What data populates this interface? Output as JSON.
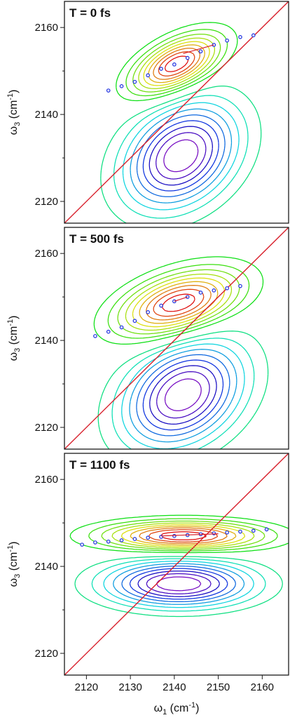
{
  "chart_data": [
    {
      "type": "contour",
      "label": "T = 0 fs",
      "xlabel": "",
      "ylabel": "ω3 (cm-1)",
      "ylabel_main": "ω",
      "ylabel_sub": "3",
      "ylabel_unit": " (cm",
      "ylabel_sup": "-1",
      "ylabel_close": ")",
      "xlim": [
        2115,
        2166
      ],
      "ylim": [
        2115,
        2166
      ],
      "yticks": [
        2120,
        2140,
        2160
      ],
      "positive_peak": {
        "x": 2140.5,
        "y": 2151.5,
        "sx": 6.5,
        "sy": 4.5,
        "corr": 0.55
      },
      "negative_peak": {
        "x": 2141.5,
        "y": 2130.5,
        "sx": 8.5,
        "sy": 8.0,
        "corr": 0.3
      },
      "diagonal": [
        [
          2115,
          2115
        ],
        [
          2166,
          2166
        ]
      ],
      "center_line": {
        "x": [
          2142,
          2149
        ],
        "y": [
          2154,
          2156
        ]
      },
      "points": [
        {
          "x": 2125,
          "y": 2145.5
        },
        {
          "x": 2128,
          "y": 2146.5
        },
        {
          "x": 2131,
          "y": 2147.5
        },
        {
          "x": 2134,
          "y": 2149
        },
        {
          "x": 2137,
          "y": 2150.5
        },
        {
          "x": 2140,
          "y": 2151.5
        },
        {
          "x": 2143,
          "y": 2153
        },
        {
          "x": 2146,
          "y": 2154.5
        },
        {
          "x": 2149,
          "y": 2156
        },
        {
          "x": 2152,
          "y": 2157
        },
        {
          "x": 2155,
          "y": 2157.8
        },
        {
          "x": 2158,
          "y": 2158.2
        }
      ]
    },
    {
      "type": "contour",
      "label": "T = 500 fs",
      "xlabel": "",
      "ylabel": "ω3 (cm-1)",
      "ylabel_main": "ω",
      "ylabel_sub": "3",
      "ylabel_unit": " (cm",
      "ylabel_sup": "-1",
      "ylabel_close": ")",
      "xlim": [
        2115,
        2166
      ],
      "ylim": [
        2115,
        2166
      ],
      "yticks": [
        2120,
        2140,
        2160
      ],
      "positive_peak": {
        "x": 2141,
        "y": 2148.5,
        "sx": 9.0,
        "sy": 5.0,
        "corr": 0.45
      },
      "negative_peak": {
        "x": 2142,
        "y": 2127.5,
        "sx": 9.0,
        "sy": 8.0,
        "corr": 0.3
      },
      "diagonal": [
        [
          2115,
          2115
        ],
        [
          2166,
          2166
        ]
      ],
      "center_line": {
        "x": [
          2140,
          2143
        ],
        "y": [
          2149,
          2150
        ]
      },
      "points": [
        {
          "x": 2122,
          "y": 2141
        },
        {
          "x": 2125,
          "y": 2142
        },
        {
          "x": 2128,
          "y": 2143
        },
        {
          "x": 2131,
          "y": 2144.5
        },
        {
          "x": 2134,
          "y": 2146.5
        },
        {
          "x": 2137,
          "y": 2148
        },
        {
          "x": 2140,
          "y": 2149
        },
        {
          "x": 2143,
          "y": 2150
        },
        {
          "x": 2146,
          "y": 2151
        },
        {
          "x": 2149,
          "y": 2151.5
        },
        {
          "x": 2152,
          "y": 2152
        },
        {
          "x": 2155,
          "y": 2152.5
        }
      ]
    },
    {
      "type": "contour",
      "label": "T = 1100 fs",
      "xlabel": "ω1 (cm-1)",
      "xlabel_main": "ω",
      "xlabel_sub": "1",
      "xlabel_unit": " (cm",
      "xlabel_sup": "-1",
      "xlabel_close": ")",
      "ylabel": "ω3 (cm-1)",
      "ylabel_main": "ω",
      "ylabel_sub": "3",
      "ylabel_unit": " (cm",
      "ylabel_sup": "-1",
      "ylabel_close": ")",
      "xlim": [
        2115,
        2166
      ],
      "ylim": [
        2115,
        2166
      ],
      "xticks": [
        2120,
        2130,
        2140,
        2150,
        2160
      ],
      "yticks": [
        2120,
        2140,
        2160
      ],
      "positive_peak": {
        "x": 2142,
        "y": 2147,
        "sx": 12.0,
        "sy": 2.2,
        "corr": 0.0
      },
      "negative_peak": {
        "x": 2141,
        "y": 2136,
        "sx": 11.0,
        "sy": 3.5,
        "corr": 0.0
      },
      "diagonal": [
        [
          2115,
          2115
        ],
        [
          2166,
          2166
        ]
      ],
      "center_line": {
        "x": [
          2137,
          2150
        ],
        "y": [
          2147,
          2147.5
        ]
      },
      "points": [
        {
          "x": 2119,
          "y": 2145
        },
        {
          "x": 2122,
          "y": 2145.5
        },
        {
          "x": 2125,
          "y": 2145.7
        },
        {
          "x": 2128,
          "y": 2146
        },
        {
          "x": 2131,
          "y": 2146.3
        },
        {
          "x": 2134,
          "y": 2146.6
        },
        {
          "x": 2137,
          "y": 2146.8
        },
        {
          "x": 2140,
          "y": 2147
        },
        {
          "x": 2143,
          "y": 2147.2
        },
        {
          "x": 2146,
          "y": 2147.4
        },
        {
          "x": 2149,
          "y": 2147.6
        },
        {
          "x": 2152,
          "y": 2147.8
        },
        {
          "x": 2155,
          "y": 2148
        },
        {
          "x": 2158,
          "y": 2148.2
        },
        {
          "x": 2161,
          "y": 2148.5
        }
      ]
    }
  ]
}
